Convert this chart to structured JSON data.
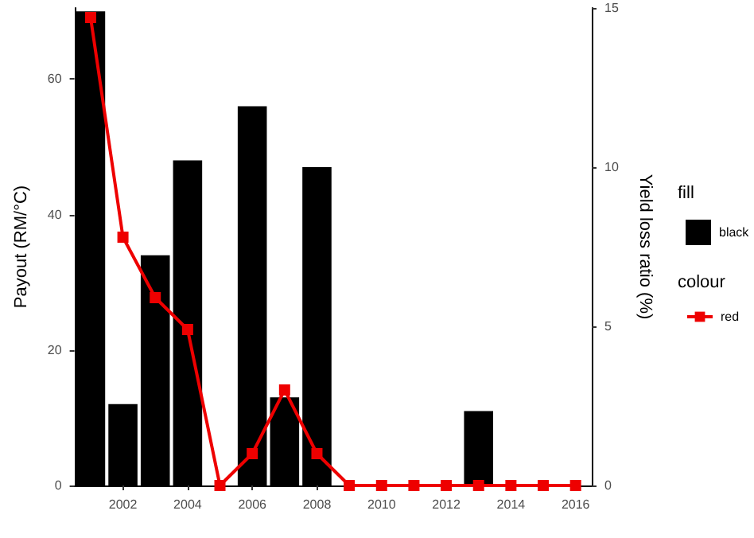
{
  "chart_data": {
    "type": "bar",
    "categories": [
      null,
      "2002",
      null,
      "2004",
      null,
      "2006",
      null,
      "2008",
      null,
      "2010",
      null,
      "2012",
      null,
      "2014",
      null,
      "2016"
    ],
    "ylabel": "Payout (RM/°C)",
    "y2label": "Yield loss ratio (%)",
    "legend_title": "fill",
    "annotations": [
      "colour"
    ],
    "ylim": [
      0,
      70.5
    ],
    "yticks": [
      0,
      20,
      40,
      60
    ],
    "y2lim": [
      0,
      15
    ],
    "y2ticks": [
      0,
      5,
      10,
      15
    ],
    "series": [
      {
        "name": "black",
        "color": "#000000",
        "values": [
          70,
          12,
          34,
          48,
          0,
          56,
          13,
          47,
          0,
          0,
          0,
          0,
          11,
          0,
          0,
          0
        ]
      },
      {
        "name": "red",
        "type": "line",
        "axis": "y2",
        "color": "#ee0000",
        "marker": "square",
        "line_style": "solid",
        "values": [
          14.7,
          7.8,
          5.9,
          4.9,
          0,
          1.0,
          3.0,
          1.0,
          0,
          0,
          0,
          0,
          0,
          0,
          0,
          0
        ]
      }
    ],
    "grid": false,
    "legend": "right"
  }
}
